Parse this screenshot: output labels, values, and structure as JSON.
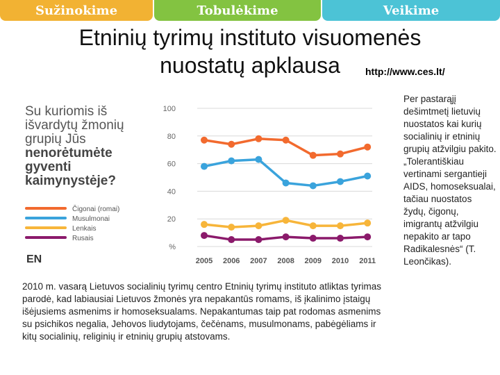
{
  "tabs": [
    "Sužinokime",
    "Tobulėkime",
    "Veikime"
  ],
  "colors": {
    "tab_1": "#f2b233",
    "tab_2": "#83c341",
    "tab_3": "#4cc3d6"
  },
  "title_line1": "Etninių tyrimų instituto visuomenės",
  "title_line2": "nuostatų apklausa",
  "url": "http://www.ces.lt/",
  "chart_data": {
    "type": "line",
    "question_lines": [
      "Su kuriomis iš",
      "išvardytų žmonių",
      "grupių Jūs"
    ],
    "question_bold_lines": [
      "nenorėtumėte",
      "gyventi",
      "kaimynystėje?"
    ],
    "x": [
      "2005",
      "2006",
      "2007",
      "2008",
      "2009",
      "2010",
      "2011"
    ],
    "y_ticks": [
      "100",
      "80",
      "60",
      "40",
      "20",
      "%"
    ],
    "ylim": [
      0,
      100
    ],
    "grid": true,
    "legend_position": "left",
    "series": [
      {
        "name": "Čigonai (romai)",
        "color": "#f26a2e",
        "values": [
          77,
          74,
          78,
          77,
          66,
          67,
          72
        ]
      },
      {
        "name": "Musulmonai",
        "color": "#3aa3dc",
        "values": [
          58,
          62,
          63,
          46,
          44,
          47,
          51
        ]
      },
      {
        "name": "Lenkais",
        "color": "#f7b53a",
        "values": [
          16,
          14,
          15,
          19,
          15,
          15,
          17
        ]
      },
      {
        "name": "Rusais",
        "color": "#8b1a6b",
        "values": [
          8,
          5,
          5,
          7,
          6,
          6,
          7
        ]
      }
    ],
    "logo": "EN"
  },
  "caption": "2010 m. vasarą Lietuvos socialinių tyrimų centro Etninių tyrimų instituto atliktas tyrimas parodė, kad labiausiai Lietuvos žmonės yra nepakantūs romams, iš įkalinimo įstaigų išėjusiems asmenims ir homoseksualams. Nepakantumas taip pat rodomas asmenims su psichikos negalia, Jehovos liudytojams, čečėnams, musulmonams, pabėgėliams ir kitų socialinių, religinių ir etninių grupių atstovams.",
  "side_text": "Per pastarąjį dešimtmetį lietuvių nuostatos kai kurių socialinių ir etninių grupių atžvilgiu pakito. „Tolerantiškiau vertinami sergantieji AIDS, homoseksualai, tačiau nuostatos žydų, čigonų, imigrantų atžvilgiu nepakito ar tapo Radikalesnės“ (T. Leončikas)."
}
